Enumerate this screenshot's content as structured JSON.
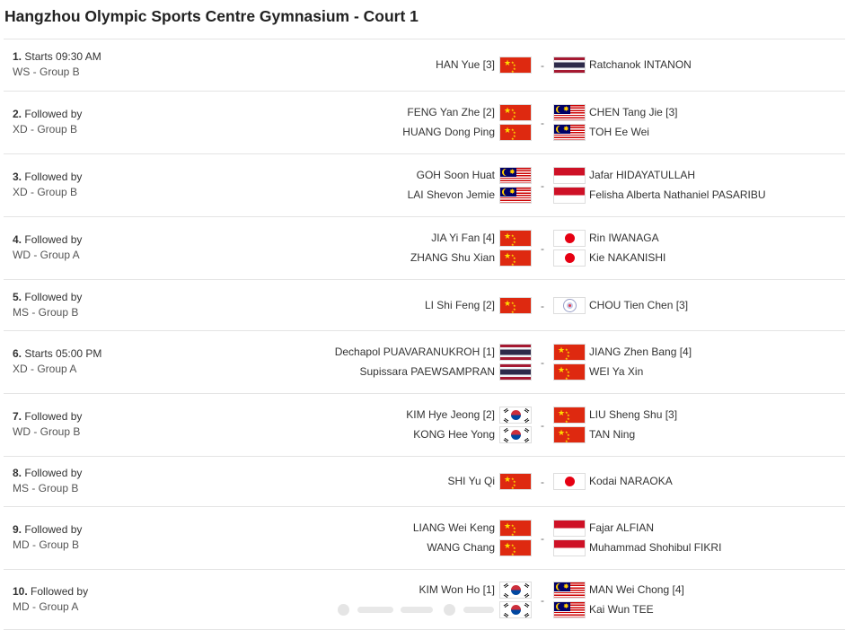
{
  "title": "Hangzhou Olympic Sports Centre Gymnasium - Court 1",
  "dash": "-",
  "matches": [
    {
      "num": "1.",
      "time": "Starts 09:30 AM",
      "event": "WS - Group B",
      "left": [
        {
          "name": "HAN Yue [3]",
          "flag": "china-flag"
        }
      ],
      "right": [
        {
          "name": "Ratchanok INTANON",
          "flag": "thailand-flag"
        }
      ]
    },
    {
      "num": "2.",
      "time": "Followed by",
      "event": "XD - Group B",
      "left": [
        {
          "name": "FENG Yan Zhe [2]",
          "flag": "china-flag"
        },
        {
          "name": "HUANG Dong Ping",
          "flag": "china-flag"
        }
      ],
      "right": [
        {
          "name": "CHEN Tang Jie [3]",
          "flag": "malaysia-flag"
        },
        {
          "name": "TOH Ee Wei",
          "flag": "malaysia-flag"
        }
      ]
    },
    {
      "num": "3.",
      "time": "Followed by",
      "event": "XD - Group B",
      "left": [
        {
          "name": "GOH Soon Huat",
          "flag": "malaysia-flag"
        },
        {
          "name": "LAI Shevon Jemie",
          "flag": "malaysia-flag"
        }
      ],
      "right": [
        {
          "name": "Jafar HIDAYATULLAH",
          "flag": "indonesia-flag"
        },
        {
          "name": "Felisha Alberta Nathaniel PASARIBU",
          "flag": "indonesia-flag"
        }
      ]
    },
    {
      "num": "4.",
      "time": "Followed by",
      "event": "WD - Group A",
      "left": [
        {
          "name": "JIA Yi Fan [4]",
          "flag": "china-flag"
        },
        {
          "name": "ZHANG Shu Xian",
          "flag": "china-flag"
        }
      ],
      "right": [
        {
          "name": "Rin IWANAGA",
          "flag": "japan-flag"
        },
        {
          "name": "Kie NAKANISHI",
          "flag": "japan-flag"
        }
      ]
    },
    {
      "num": "5.",
      "time": "Followed by",
      "event": "MS - Group B",
      "left": [
        {
          "name": "LI Shi Feng [2]",
          "flag": "china-flag"
        }
      ],
      "right": [
        {
          "name": "CHOU Tien Chen [3]",
          "flag": "chinese-taipei-flag"
        }
      ]
    },
    {
      "num": "6.",
      "time": "Starts 05:00 PM",
      "event": "XD - Group A",
      "left": [
        {
          "name": "Dechapol PUAVARANUKROH [1]",
          "flag": "thailand-flag"
        },
        {
          "name": "Supissara PAEWSAMPRAN",
          "flag": "thailand-flag"
        }
      ],
      "right": [
        {
          "name": "JIANG Zhen Bang [4]",
          "flag": "china-flag"
        },
        {
          "name": "WEI Ya Xin",
          "flag": "china-flag"
        }
      ]
    },
    {
      "num": "7.",
      "time": "Followed by",
      "event": "WD - Group B",
      "left": [
        {
          "name": "KIM Hye Jeong [2]",
          "flag": "korea-flag"
        },
        {
          "name": "KONG Hee Yong",
          "flag": "korea-flag"
        }
      ],
      "right": [
        {
          "name": "LIU Sheng Shu [3]",
          "flag": "china-flag"
        },
        {
          "name": "TAN Ning",
          "flag": "china-flag"
        }
      ]
    },
    {
      "num": "8.",
      "time": "Followed by",
      "event": "MS - Group B",
      "left": [
        {
          "name": "SHI Yu Qi",
          "flag": "china-flag"
        }
      ],
      "right": [
        {
          "name": "Kodai NARAOKA",
          "flag": "japan-flag"
        }
      ]
    },
    {
      "num": "9.",
      "time": "Followed by",
      "event": "MD - Group B",
      "left": [
        {
          "name": "LIANG Wei Keng",
          "flag": "china-flag"
        },
        {
          "name": "WANG Chang",
          "flag": "china-flag"
        }
      ],
      "right": [
        {
          "name": "Fajar ALFIAN",
          "flag": "indonesia-flag"
        },
        {
          "name": "Muhammad Shohibul FIKRI",
          "flag": "indonesia-flag"
        }
      ]
    },
    {
      "num": "10.",
      "time": "Followed by",
      "event": "MD - Group A",
      "left": [
        {
          "name": "KIM Won Ho [1]",
          "flag": "korea-flag"
        },
        {
          "name": "",
          "flag": "korea-flag"
        }
      ],
      "right": [
        {
          "name": "MAN Wei Chong [4]",
          "flag": "malaysia-flag"
        },
        {
          "name": "Kai Wun TEE",
          "flag": "malaysia-flag"
        }
      ]
    }
  ]
}
